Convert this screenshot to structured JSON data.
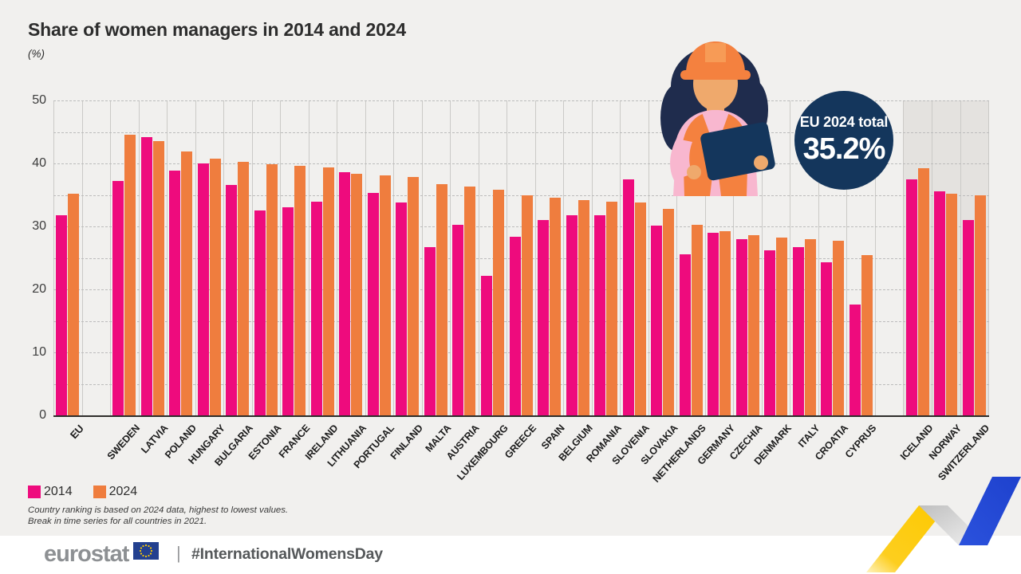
{
  "title": "Share of women managers in 2014 and 2024",
  "subtitle": "(%)",
  "badge": {
    "label": "EU 2024 total",
    "value": "35.2%"
  },
  "legend": {
    "items": [
      {
        "label": "2014",
        "color": "#ee0b7d"
      },
      {
        "label": "2024",
        "color": "#ef7d3e"
      }
    ]
  },
  "footnotes": [
    "Country ranking is based on 2024 data, highest to lowest values.",
    "Break in time series for all countries in 2021."
  ],
  "footer": {
    "logo_text": "eurostat",
    "separator": "|",
    "hashtag": "#InternationalWomensDay",
    "flag_icon": "eu-flag-icon"
  },
  "colors": {
    "bar_2014": "#ee0b7d",
    "bar_2024": "#ef7d3e",
    "badge_navy": "#14365c",
    "page_background": "#f1f0ee",
    "shaded_panel": "#e4e2df",
    "gridline": "#bcbcbc",
    "ribbon_yellow": "#fdc900",
    "ribbon_blue": "#2b52dd"
  },
  "chart_data": {
    "type": "bar",
    "title": "Share of women managers in 2014 and 2024",
    "ylabel": "(%)",
    "ylim": [
      0,
      50
    ],
    "yticks": [
      0,
      10,
      20,
      30,
      40,
      50
    ],
    "grid": "horizontal-dashed-every-5",
    "legend_position": "bottom-left",
    "categories": [
      "EU",
      "SWEDEN",
      "LATVIA",
      "POLAND",
      "HUNGARY",
      "BULGARIA",
      "ESTONIA",
      "FRANCE",
      "IRELAND",
      "LITHUANIA",
      "PORTUGAL",
      "FINLAND",
      "MALTA",
      "AUSTRIA",
      "LUXEMBOURG",
      "GREECE",
      "SPAIN",
      "BELGIUM",
      "ROMANIA",
      "SLOVENIA",
      "SLOVAKIA",
      "NETHERLANDS",
      "GERMANY",
      "CZECHIA",
      "DENMARK",
      "ITALY",
      "CROATIA",
      "CYPRUS",
      "ICELAND",
      "NORWAY",
      "SWITZERLAND"
    ],
    "series": [
      {
        "name": "2014",
        "values": [
          31.8,
          37.2,
          44.2,
          38.9,
          40.0,
          36.6,
          32.5,
          33.0,
          33.9,
          38.6,
          35.3,
          33.8,
          26.7,
          30.3,
          22.2,
          28.4,
          31.0,
          31.8,
          31.8,
          37.5,
          30.1,
          25.6,
          29.0,
          28.0,
          26.2,
          26.7,
          24.3,
          17.6,
          37.5,
          35.6,
          31.0
        ]
      },
      {
        "name": "2024",
        "values": [
          35.2,
          44.5,
          43.6,
          41.9,
          40.7,
          40.3,
          39.9,
          39.6,
          39.4,
          38.4,
          38.1,
          37.8,
          36.7,
          36.3,
          35.8,
          34.9,
          34.5,
          34.2,
          33.9,
          33.8,
          32.8,
          30.3,
          29.2,
          28.6,
          28.2,
          28.0,
          27.7,
          25.5,
          39.3,
          35.2,
          35.0
        ]
      }
    ],
    "spacer_after_categories": [
      "EU",
      "CYPRUS"
    ],
    "shaded_categories": [
      "ICELAND",
      "NORWAY",
      "SWITZERLAND"
    ],
    "bold_categories": [
      "EU"
    ]
  }
}
